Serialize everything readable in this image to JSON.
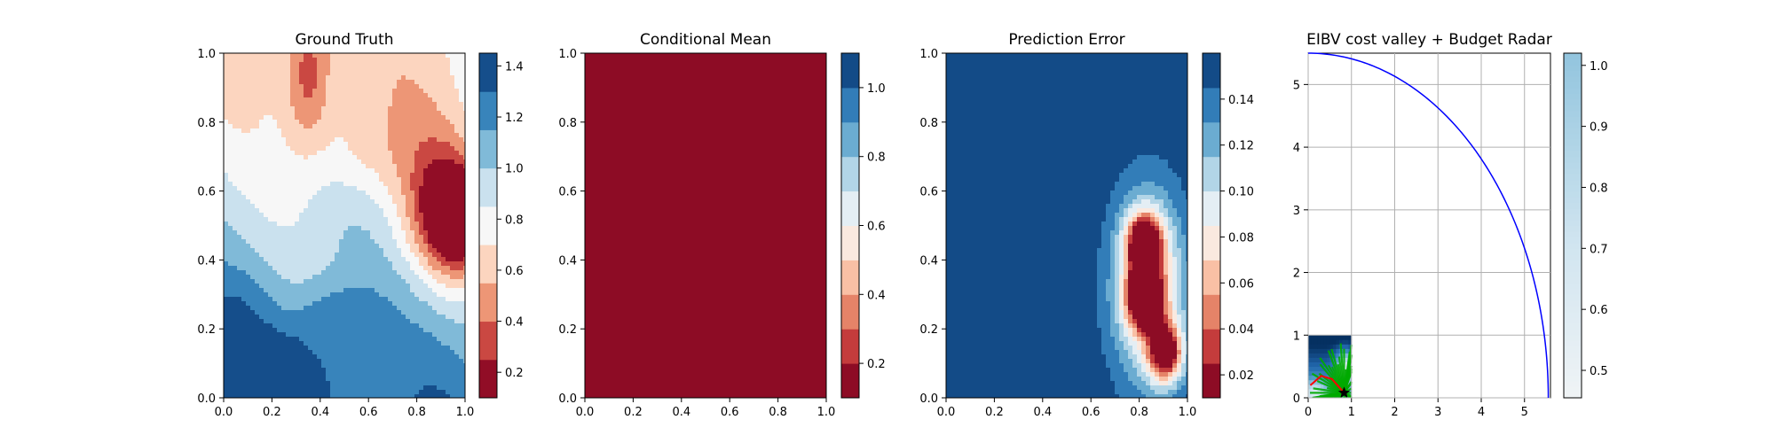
{
  "chart_data": [
    {
      "type": "heatmap",
      "title": "Ground Truth",
      "xlim": [
        0,
        1
      ],
      "ylim": [
        0,
        1
      ],
      "x_ticks": [
        "0.0",
        "0.2",
        "0.4",
        "0.6",
        "0.8",
        "1.0"
      ],
      "y_ticks": [
        "0.0",
        "0.2",
        "0.4",
        "0.6",
        "0.8",
        "1.0"
      ],
      "colormap": "RdBu",
      "colorbar_ticks": [
        "0.2",
        "0.4",
        "0.6",
        "0.8",
        "1.0",
        "1.2",
        "1.4"
      ],
      "colorbar_ticks_values": [
        0.2,
        0.4,
        0.6,
        0.8,
        1.0,
        1.2,
        1.4
      ],
      "levels": [
        0.1,
        0.25,
        0.4,
        0.55,
        0.7,
        0.85,
        1.0,
        1.15,
        1.3,
        1.45
      ],
      "features": {
        "cold_blob": {
          "x": 0.97,
          "y": 0.52,
          "value": 0.05
        },
        "high_blob": {
          "x": 0.3,
          "y": 0.05,
          "value": 1.48
        }
      }
    },
    {
      "type": "heatmap",
      "title": "Conditional Mean",
      "xlim": [
        0,
        1
      ],
      "ylim": [
        0,
        1
      ],
      "x_ticks": [
        "0.0",
        "0.2",
        "0.4",
        "0.6",
        "0.8",
        "1.0"
      ],
      "y_ticks": [
        "0.0",
        "0.2",
        "0.4",
        "0.6",
        "0.8",
        "1.0"
      ],
      "colormap": "RdBu",
      "colorbar_ticks": [
        "0.2",
        "0.4",
        "0.6",
        "0.8",
        "1.0"
      ],
      "colorbar_ticks_values": [
        0.2,
        0.4,
        0.6,
        0.8,
        1.0
      ],
      "levels": [
        0.1,
        0.2,
        0.3,
        0.4,
        0.5,
        0.6,
        0.7,
        0.8,
        0.9,
        1.0,
        1.1
      ],
      "features": {
        "min_center": {
          "x": 0.98,
          "y": 0.5,
          "value": 0.12
        }
      }
    },
    {
      "type": "heatmap",
      "title": "Prediction Error",
      "xlim": [
        0,
        1
      ],
      "ylim": [
        0,
        1
      ],
      "x_ticks": [
        "0.0",
        "0.2",
        "0.4",
        "0.6",
        "0.8",
        "1.0"
      ],
      "y_ticks": [
        "0.0",
        "0.2",
        "0.4",
        "0.6",
        "0.8",
        "1.0"
      ],
      "colormap": "RdBu",
      "colorbar_ticks": [
        "0.02",
        "0.04",
        "0.06",
        "0.08",
        "0.10",
        "0.12",
        "0.14"
      ],
      "colorbar_ticks_values": [
        0.02,
        0.04,
        0.06,
        0.08,
        0.1,
        0.12,
        0.14
      ],
      "levels": [
        0.01,
        0.025,
        0.04,
        0.055,
        0.07,
        0.085,
        0.1,
        0.115,
        0.13,
        0.145,
        0.16
      ],
      "features": {
        "minima": [
          {
            "x": 0.82,
            "y": 0.45
          },
          {
            "x": 0.82,
            "y": 0.29
          },
          {
            "x": 0.91,
            "y": 0.13
          }
        ]
      }
    },
    {
      "type": "heatmap",
      "title": "EIBV cost valley + Budget Radar",
      "xlim": [
        0,
        5.6
      ],
      "ylim": [
        0,
        5.5
      ],
      "x_ticks": [
        "0",
        "1",
        "2",
        "3",
        "4",
        "5"
      ],
      "y_ticks": [
        "0",
        "1",
        "2",
        "3",
        "4",
        "5"
      ],
      "grid": true,
      "colormap": "RdBu",
      "colorbar_ticks": [
        "0.5",
        "0.6",
        "0.7",
        "0.8",
        "0.9",
        "1.0"
      ],
      "colorbar_ticks_values": [
        0.5,
        0.6,
        0.7,
        0.8,
        0.9,
        1.0
      ],
      "colorbar_range": [
        0.455,
        1.02
      ],
      "budget_arc": {
        "a": 5.55,
        "b": 5.5,
        "color": "#0000ff"
      },
      "cost_valley_extent": {
        "x": [
          0,
          1
        ],
        "y": [
          0,
          1
        ]
      },
      "marker": {
        "x": 0.83,
        "y": 0.08
      },
      "colors": {
        "tree_lines": "#00aa00",
        "path": "#ff0000"
      }
    }
  ]
}
